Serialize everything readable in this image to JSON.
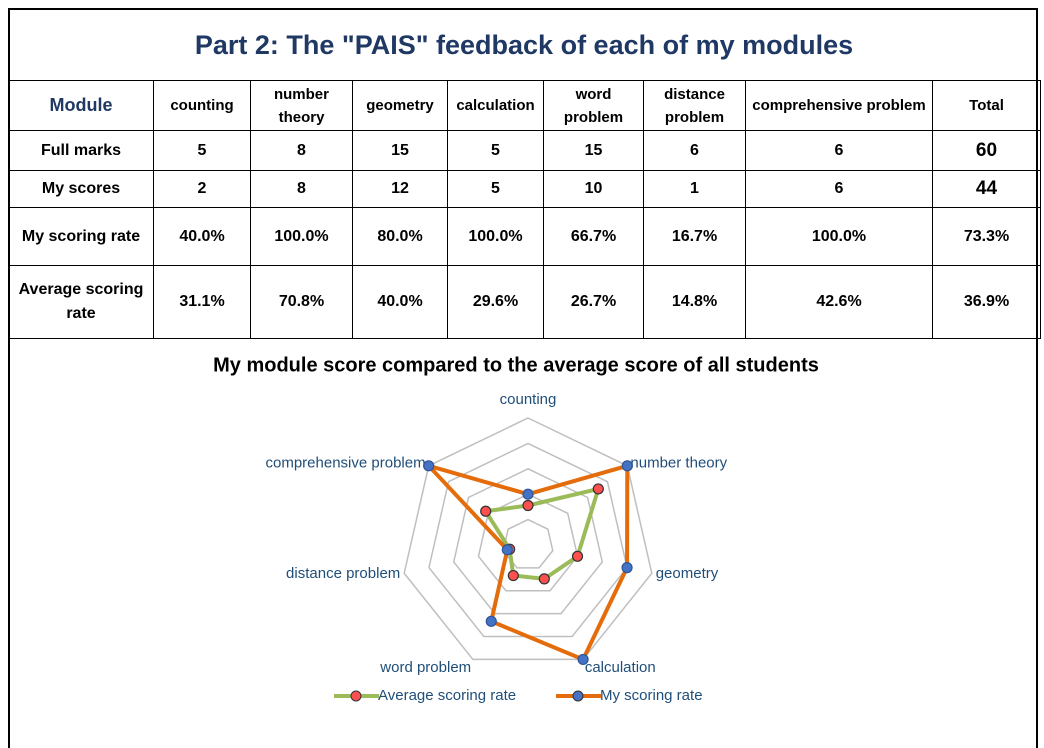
{
  "title": "Part 2: The \"PAIS\" feedback of each of my modules",
  "table": {
    "header": [
      "Module",
      "counting",
      "number theory",
      "geometry",
      "calculation",
      "word problem",
      "distance problem",
      "comprehensive problem",
      "Total"
    ],
    "rows": [
      [
        "Full marks",
        "5",
        "8",
        "15",
        "5",
        "15",
        "6",
        "6",
        "60"
      ],
      [
        "My scores",
        "2",
        "8",
        "12",
        "5",
        "10",
        "1",
        "6",
        "44"
      ],
      [
        "My scoring rate",
        "40.0%",
        "100.0%",
        "80.0%",
        "100.0%",
        "66.7%",
        "16.7%",
        "100.0%",
        "73.3%"
      ],
      [
        "Average scoring rate",
        "31.1%",
        "70.8%",
        "40.0%",
        "29.6%",
        "26.7%",
        "14.8%",
        "42.6%",
        "36.9%"
      ]
    ]
  },
  "chart_data": {
    "type": "radar",
    "title": "My module score compared to the average score of all students",
    "categories": [
      "counting",
      "number theory",
      "geometry",
      "calculation",
      "word problem",
      "distance problem",
      "comprehensive problem"
    ],
    "series": [
      {
        "name": "Average scoring rate",
        "color": "#9bbb59",
        "marker_color": "#ff5050",
        "values": [
          31.1,
          70.8,
          40.0,
          29.6,
          26.7,
          14.8,
          42.6
        ]
      },
      {
        "name": "My scoring rate",
        "color": "#e46c0a",
        "marker_color": "#4472c4",
        "values": [
          40.0,
          100.0,
          80.0,
          100.0,
          66.7,
          16.7,
          100.0
        ]
      }
    ],
    "rlim": [
      0,
      100
    ],
    "rticks": [
      0,
      20,
      40,
      60,
      80,
      100
    ]
  }
}
